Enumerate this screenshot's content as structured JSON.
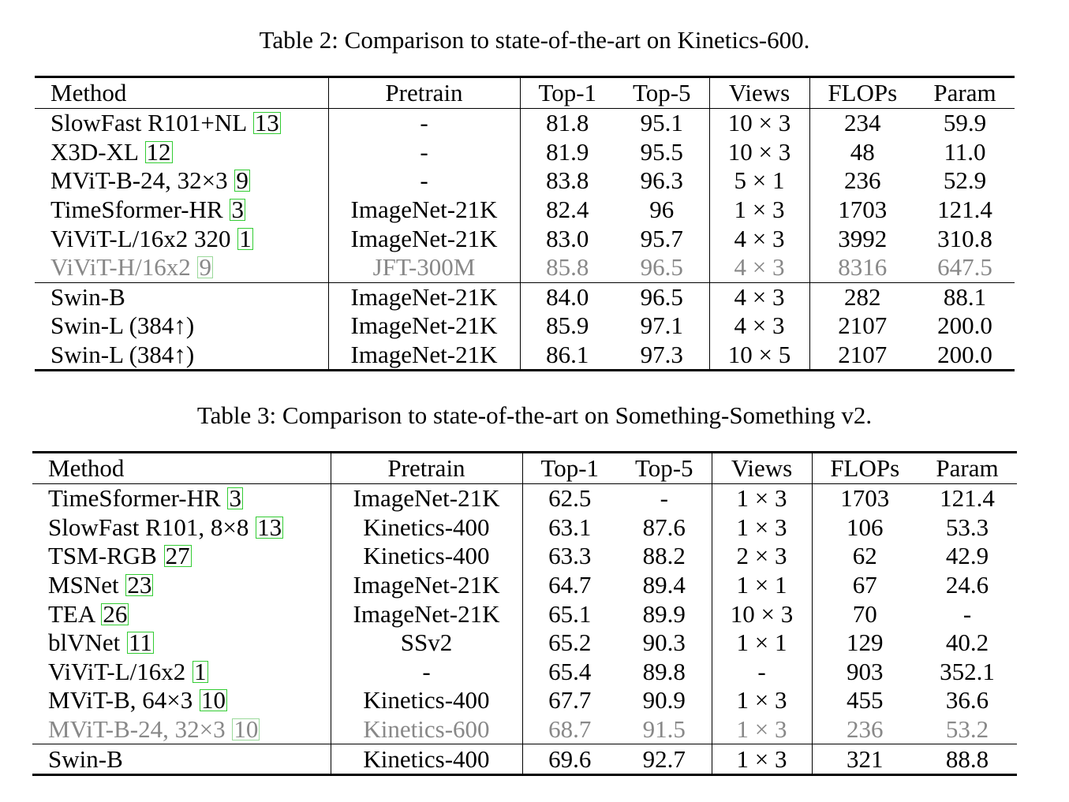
{
  "columns": [
    "Method",
    "Pretrain",
    "Top-1",
    "Top-5",
    "Views",
    "FLOPs",
    "Param"
  ],
  "table2": {
    "caption": "Table 2: Comparison to state-of-the-art on Kinetics-600.",
    "rows": [
      {
        "method": "SlowFast R101+NL",
        "cite": "13",
        "pretrain": "-",
        "top1": "81.8",
        "top5": "95.1",
        "views": "10 × 3",
        "flops": "234",
        "param": "59.9"
      },
      {
        "method": "X3D-XL",
        "cite": "12",
        "pretrain": "-",
        "top1": "81.9",
        "top5": "95.5",
        "views": "10 × 3",
        "flops": "48",
        "param": "11.0"
      },
      {
        "method": "MViT-B-24, 32×3",
        "cite": "9",
        "pretrain": "-",
        "top1": "83.8",
        "top5": "96.3",
        "views": "5 × 1",
        "flops": "236",
        "param": "52.9"
      },
      {
        "method": "TimeSformer-HR",
        "cite": "3",
        "pretrain": "ImageNet-21K",
        "top1": "82.4",
        "top5": "96",
        "views": "1 × 3",
        "flops": "1703",
        "param": "121.4"
      },
      {
        "method": "ViViT-L/16x2 320",
        "cite": "1",
        "pretrain": "ImageNet-21K",
        "top1": "83.0",
        "top5": "95.7",
        "views": "4 × 3",
        "flops": "3992",
        "param": "310.8"
      },
      {
        "method": "ViViT-H/16x2",
        "cite": "9",
        "pretrain": "JFT-300M",
        "top1": "85.8",
        "top5": "96.5",
        "views": "4 × 3",
        "flops": "8316",
        "param": "647.5"
      },
      {
        "method": "Swin-B",
        "cite": "",
        "pretrain": "ImageNet-21K",
        "top1": "84.0",
        "top5": "96.5",
        "views": "4 × 3",
        "flops": "282",
        "param": "88.1"
      },
      {
        "method": "Swin-L (384↑)",
        "cite": "",
        "pretrain": "ImageNet-21K",
        "top1": "85.9",
        "top5": "97.1",
        "views": "4 × 3",
        "flops": "2107",
        "param": "200.0"
      },
      {
        "method": "Swin-L (384↑)",
        "cite": "",
        "pretrain": "ImageNet-21K",
        "top1": "86.1",
        "top5": "97.3",
        "views": "10 × 5",
        "flops": "2107",
        "param": "200.0"
      }
    ]
  },
  "table3": {
    "caption": "Table 3: Comparison to state-of-the-art on Something-Something v2.",
    "rows": [
      {
        "method": "TimeSformer-HR",
        "cite": "3",
        "pretrain": "ImageNet-21K",
        "top1": "62.5",
        "top5": "-",
        "views": "1 × 3",
        "flops": "1703",
        "param": "121.4"
      },
      {
        "method": "SlowFast R101, 8×8",
        "cite": "13",
        "pretrain": "Kinetics-400",
        "top1": "63.1",
        "top5": "87.6",
        "views": "1 × 3",
        "flops": "106",
        "param": "53.3"
      },
      {
        "method": "TSM-RGB",
        "cite": "27",
        "pretrain": "Kinetics-400",
        "top1": "63.3",
        "top5": "88.2",
        "views": "2 × 3",
        "flops": "62",
        "param": "42.9"
      },
      {
        "method": "MSNet",
        "cite": "23",
        "pretrain": "ImageNet-21K",
        "top1": "64.7",
        "top5": "89.4",
        "views": "1 × 1",
        "flops": "67",
        "param": "24.6"
      },
      {
        "method": "TEA",
        "cite": "26",
        "pretrain": "ImageNet-21K",
        "top1": "65.1",
        "top5": "89.9",
        "views": "10 × 3",
        "flops": "70",
        "param": "-"
      },
      {
        "method": "blVNet",
        "cite": "11",
        "pretrain": "SSv2",
        "top1": "65.2",
        "top5": "90.3",
        "views": "1 × 1",
        "flops": "129",
        "param": "40.2"
      },
      {
        "method": "ViViT-L/16x2",
        "cite": "1",
        "pretrain": "-",
        "top1": "65.4",
        "top5": "89.8",
        "views": "-",
        "flops": "903",
        "param": "352.1"
      },
      {
        "method": "MViT-B, 64×3",
        "cite": "10",
        "pretrain": "Kinetics-400",
        "top1": "67.7",
        "top5": "90.9",
        "views": "1 × 3",
        "flops": "455",
        "param": "36.6"
      },
      {
        "method": "MViT-B-24, 32×3",
        "cite": "10",
        "pretrain": "Kinetics-600",
        "top1": "68.7",
        "top5": "91.5",
        "views": "1 × 3",
        "flops": "236",
        "param": "53.2"
      },
      {
        "method": "Swin-B",
        "cite": "",
        "pretrain": "Kinetics-400",
        "top1": "69.6",
        "top5": "92.7",
        "views": "1 × 3",
        "flops": "321",
        "param": "88.8"
      }
    ]
  }
}
